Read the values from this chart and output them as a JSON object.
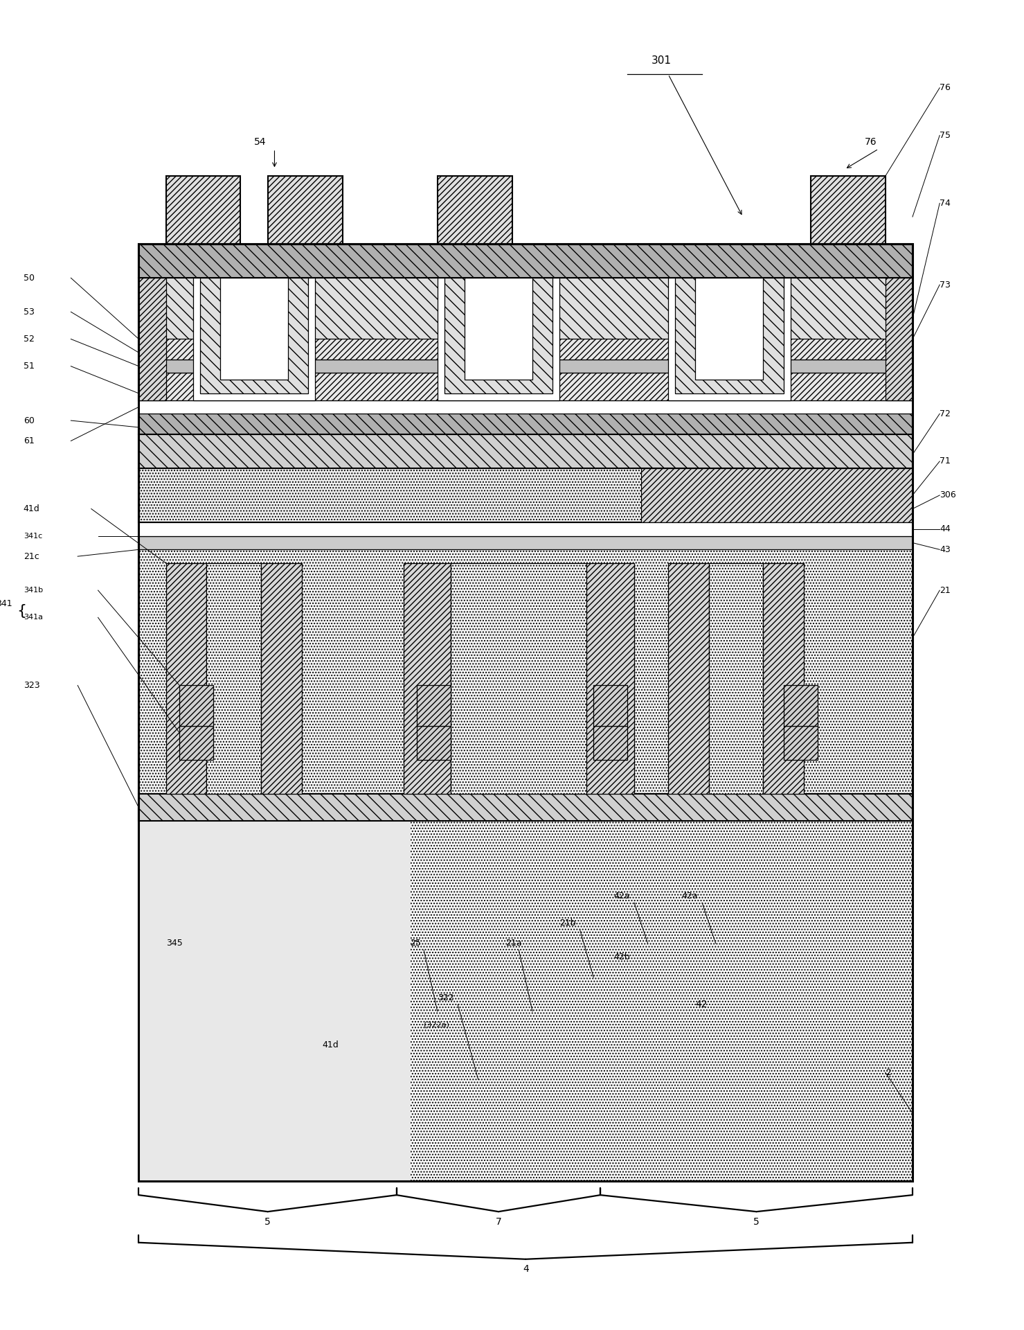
{
  "bg_color": "#ffffff",
  "line_color": "#000000",
  "fig_width": 14.79,
  "fig_height": 19.2,
  "labels_left": [
    "50",
    "53",
    "52",
    "51",
    "60",
    "61",
    "41d",
    "341c",
    "21c",
    "341b",
    "341a",
    "341",
    "323"
  ],
  "labels_right": [
    "76",
    "75",
    "74",
    "73",
    "72",
    "71",
    "306",
    "44",
    "43",
    "21"
  ],
  "bracket_labels": [
    "5",
    "7",
    "5",
    "4"
  ]
}
